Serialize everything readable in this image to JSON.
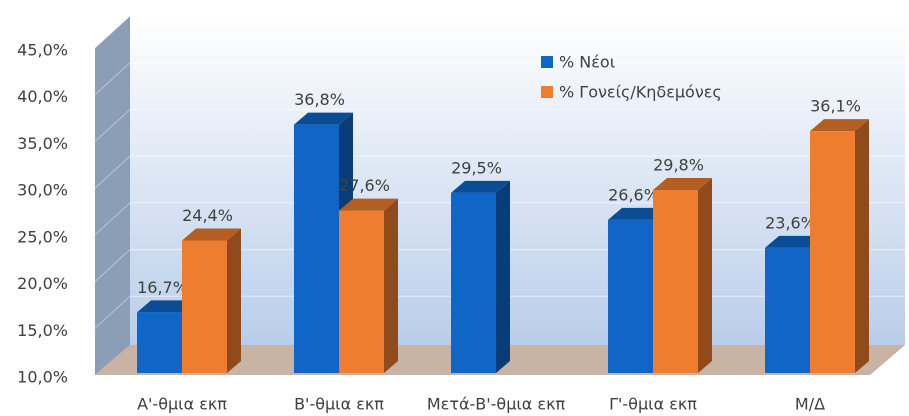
{
  "chart_data": {
    "type": "bar3d",
    "categories": [
      "Α'-θμια εκπ",
      "Β'-θμια εκπ",
      "Μετά-Β'-θμια εκπ",
      "Γ'-θμια εκπ",
      "Μ/Δ"
    ],
    "series": [
      {
        "name": "% Νέοι",
        "color": "#0f66c6",
        "values": [
          16.7,
          36.8,
          29.5,
          26.6,
          23.6
        ],
        "value_labels": [
          "16,7%",
          "36,8%",
          "29,5%",
          "26,6%",
          "23,6%"
        ]
      },
      {
        "name": "% Γονείς/Κηδεμόνες",
        "color": "#ee7d2f",
        "values": [
          24.4,
          27.6,
          null,
          29.8,
          36.1
        ],
        "value_labels": [
          "24,4%",
          "27,6%",
          null,
          "29,8%",
          "36,1%"
        ]
      }
    ],
    "ylim": [
      10,
      45
    ],
    "yticks": [
      {
        "value": 10,
        "label": "10,0%"
      },
      {
        "value": 15,
        "label": "15,0%"
      },
      {
        "value": 20,
        "label": "20,0%"
      },
      {
        "value": 25,
        "label": "25,0%"
      },
      {
        "value": 30,
        "label": "30,0%"
      },
      {
        "value": 35,
        "label": "35,0%"
      },
      {
        "value": 40,
        "label": "40,0%"
      },
      {
        "value": 45,
        "label": "45,0%"
      }
    ],
    "grid": true,
    "legend": "top"
  }
}
